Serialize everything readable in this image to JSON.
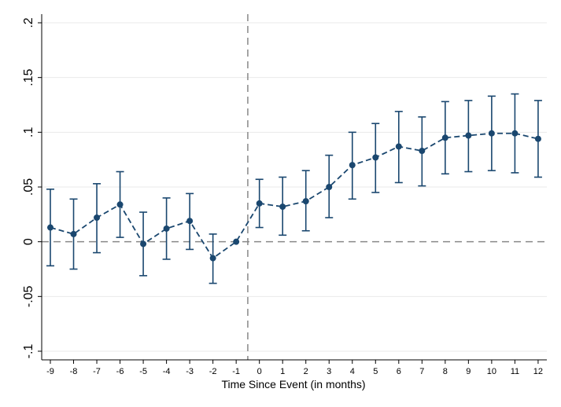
{
  "chart_data": {
    "type": "line",
    "title": "",
    "xlabel": "Time Since Event (in months)",
    "ylabel": "",
    "x": [
      -9,
      -8,
      -7,
      -6,
      -5,
      -4,
      -3,
      -2,
      -1,
      0,
      1,
      2,
      3,
      4,
      5,
      6,
      7,
      8,
      9,
      10,
      11,
      12
    ],
    "x_tick_labels": [
      "-9",
      "-8",
      "-7",
      "-6",
      "-5",
      "-4",
      "-3",
      "-2",
      "-1",
      "0",
      "1",
      "2",
      "3",
      "4",
      "5",
      "6",
      "7",
      "8",
      "9",
      "10",
      "11",
      "12"
    ],
    "y_ticks": [
      -0.1,
      -0.05,
      0,
      0.05,
      0.1,
      0.15,
      0.2
    ],
    "y_tick_labels": [
      "-.1",
      "-.05",
      "0",
      ".05",
      ".1",
      ".15",
      ".2"
    ],
    "ylim": [
      -0.1,
      0.2
    ],
    "grid": true,
    "series": [
      {
        "values": [
          0.013,
          0.007,
          0.022,
          0.034,
          -0.002,
          0.012,
          0.019,
          -0.015,
          0.0,
          0.035,
          0.032,
          0.037,
          0.05,
          0.07,
          0.077,
          0.087,
          0.083,
          0.095,
          0.097,
          0.099,
          0.099,
          0.094
        ],
        "ci_low": [
          -0.022,
          -0.025,
          -0.01,
          0.004,
          -0.031,
          -0.016,
          -0.007,
          -0.038,
          0.0,
          0.013,
          0.006,
          0.01,
          0.022,
          0.039,
          0.045,
          0.054,
          0.051,
          0.062,
          0.064,
          0.065,
          0.063,
          0.059
        ],
        "ci_high": [
          0.048,
          0.039,
          0.053,
          0.064,
          0.027,
          0.04,
          0.044,
          0.007,
          0.0,
          0.057,
          0.059,
          0.065,
          0.079,
          0.1,
          0.108,
          0.119,
          0.114,
          0.128,
          0.129,
          0.133,
          0.135,
          0.129
        ]
      }
    ],
    "reference_lines": {
      "horizontal_y": 0,
      "vertical_x": -0.5
    },
    "colors": {
      "series": "#1a476f",
      "reference": "#888888",
      "grid": "#eaeaea",
      "axis": "#000000"
    }
  }
}
